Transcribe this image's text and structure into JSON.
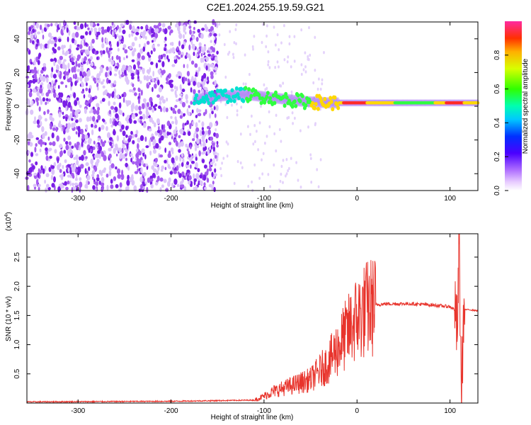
{
  "title": "C2E1.2024.255.19.59.G21",
  "colors": {
    "snr_line": "#e8342c",
    "spectrogram_points": "#7a1ee6",
    "ridge_peak": "#ff1e1e"
  },
  "chart_data": [
    {
      "type": "heatmap",
      "xlabel": "Height of straight line (km)",
      "ylabel": "Frequency (Hz)",
      "xlim": [
        -355,
        130
      ],
      "ylim": [
        -50,
        50
      ],
      "xticks": [
        -300,
        -200,
        -100,
        0,
        100
      ],
      "yticks": [
        -40,
        -20,
        0,
        20,
        40
      ],
      "colorbar": {
        "label": "Normalized spectral amplitude",
        "range": [
          0,
          1
        ],
        "ticks": [
          "0.0",
          "0.2",
          "0.4",
          "0.6",
          "0.8"
        ],
        "colormap": "rainbow"
      },
      "ridge": {
        "description_points": [
          {
            "x": -175,
            "y": 4,
            "amp": 0.55
          },
          {
            "x": -150,
            "y": 6,
            "amp": 0.5
          },
          {
            "x": -120,
            "y": 7,
            "amp": 0.55
          },
          {
            "x": -90,
            "y": 5,
            "amp": 0.6
          },
          {
            "x": -60,
            "y": 3,
            "amp": 0.65
          },
          {
            "x": -30,
            "y": 2,
            "amp": 0.8
          },
          {
            "x": 0,
            "y": 2,
            "amp": 0.9
          },
          {
            "x": 40,
            "y": 2,
            "amp": 0.7
          },
          {
            "x": 80,
            "y": 2,
            "amp": 0.65
          },
          {
            "x": 100,
            "y": 2,
            "amp": 0.9
          },
          {
            "x": 130,
            "y": 2,
            "amp": 0.8
          }
        ],
        "noise_region_x": [
          -355,
          -150
        ]
      }
    },
    {
      "type": "line",
      "xlabel": "Height of straight line (km)",
      "ylabel": "SNR (10 * v/v)",
      "y_multiplier": "(x10",
      "y_multiplier_exp": "4",
      "y_multiplier_close": ")",
      "xlim": [
        -355,
        130
      ],
      "ylim": [
        0,
        2.9
      ],
      "xticks": [
        -300,
        -200,
        -100,
        0,
        100
      ],
      "yticks": [
        "0.5",
        "1.0",
        "1.5",
        "2.0",
        "2.5"
      ],
      "series": [
        {
          "values_description": "SNR vs height (x10^4)",
          "x": [
            -355,
            -200,
            -110,
            -100,
            -90,
            -80,
            -70,
            -60,
            -50,
            -40,
            -30,
            -25,
            -20,
            -15,
            -10,
            -5,
            0,
            10,
            20,
            30,
            40,
            60,
            80,
            100,
            105,
            108,
            110,
            112,
            115,
            120,
            130
          ],
          "y": [
            0.02,
            0.03,
            0.05,
            0.12,
            0.2,
            0.25,
            0.3,
            0.35,
            0.4,
            0.55,
            0.7,
            0.85,
            0.95,
            1.1,
            1.2,
            1.35,
            1.45,
            1.6,
            1.68,
            1.7,
            1.7,
            1.7,
            1.68,
            1.65,
            1.6,
            1.2,
            2.8,
            0.1,
            1.6,
            1.6,
            1.58
          ]
        }
      ]
    }
  ]
}
